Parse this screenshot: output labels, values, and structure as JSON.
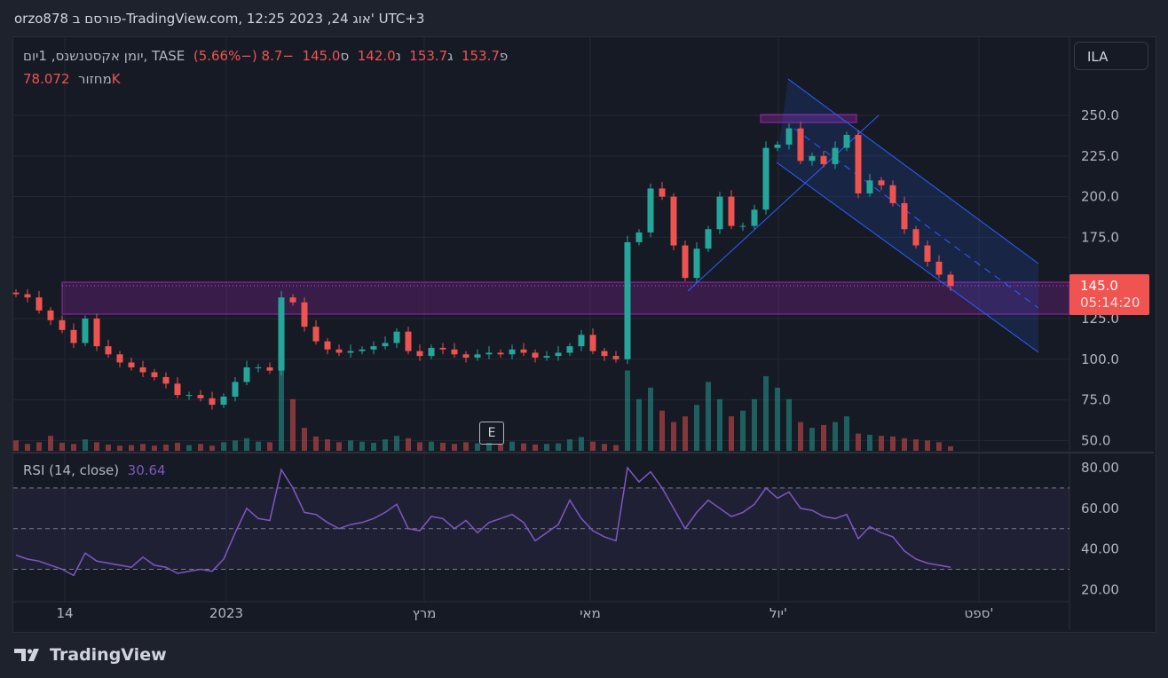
{
  "header": {
    "title": "orzo878 פורסם ב-TradingView.com, 12:25 2023 ,24 אוג' UTC+3"
  },
  "legend": {
    "symbol": "יומן אקסטנשנס, 1יום, TASE",
    "open_label": "פ",
    "open": "153.7",
    "high_label": "ג",
    "high": "153.7",
    "low_label": "נ",
    "low": "142.0",
    "close_label": "ס",
    "close": "145.0",
    "change": "−8.7 (−5.66%)",
    "volume_label": "מחזור",
    "volume": "78.072K"
  },
  "currency_button": "ILA",
  "price_tag": {
    "price": "145.0",
    "countdown": "05:14:20"
  },
  "earnings_badge": "E",
  "rsi_legend": {
    "label": "RSI (14, close)",
    "value": "30.64"
  },
  "footer": {
    "brand": "TradingView"
  },
  "colors": {
    "up": "#26a69a",
    "down": "#ef5350",
    "rsi": "#7e57c2",
    "zone": "#9c27b0",
    "channel": "#2962ff",
    "background": "#161a25"
  },
  "chart_data": [
    {
      "type": "candlestick",
      "title": "",
      "y_ticks": [
        "250.0",
        "225.0",
        "200.0",
        "175.0",
        "125.0",
        "100.0",
        "75.0",
        "50.0"
      ],
      "ylim": [
        45,
        275
      ],
      "x_ticks": [
        "14",
        "2023",
        "מרץ",
        "מאי",
        "יול'",
        "ספט'"
      ],
      "grid": true,
      "close": [
        140,
        138,
        130,
        124,
        118,
        110,
        125,
        108,
        103,
        98,
        95,
        92,
        89,
        85,
        78,
        78,
        76,
        72,
        77,
        86,
        95,
        95,
        93,
        138,
        135,
        120,
        111,
        106,
        104,
        105,
        106,
        108,
        110,
        117,
        105,
        102,
        107,
        106,
        103,
        101,
        103,
        104,
        103,
        106,
        104,
        101,
        102,
        104,
        108,
        115,
        105,
        102,
        100,
        172,
        178,
        205,
        200,
        170,
        150,
        168,
        180,
        200,
        182,
        182,
        192,
        230,
        232,
        242,
        222,
        225,
        220,
        230,
        238,
        202,
        210,
        207,
        196,
        180,
        170,
        160,
        152,
        145
      ],
      "volume_k": [
        180,
        120,
        150,
        260,
        140,
        120,
        200,
        150,
        110,
        90,
        100,
        120,
        90,
        110,
        140,
        100,
        120,
        90,
        150,
        180,
        220,
        160,
        150,
        1700,
        900,
        400,
        250,
        200,
        150,
        180,
        160,
        140,
        200,
        260,
        220,
        150,
        160,
        140,
        120,
        150,
        130,
        140,
        120,
        160,
        130,
        110,
        120,
        130,
        200,
        240,
        160,
        120,
        100,
        1400,
        900,
        1100,
        700,
        500,
        600,
        800,
        1200,
        900,
        600,
        700,
        900,
        1300,
        1100,
        900,
        500,
        400,
        450,
        500,
        600,
        300,
        280,
        260,
        250,
        220,
        200,
        180,
        150,
        78
      ]
    },
    {
      "type": "line",
      "title": "RSI (14, close)",
      "y_ticks": [
        "80.00",
        "60.00",
        "40.00",
        "20.00"
      ],
      "ylim": [
        16,
        86
      ],
      "bands": [
        70,
        50,
        30
      ],
      "values": [
        37,
        35,
        34,
        32,
        30,
        27,
        38,
        34,
        33,
        32,
        31,
        36,
        32,
        31,
        28,
        29,
        30,
        29,
        35,
        48,
        60,
        55,
        54,
        79,
        70,
        58,
        57,
        53,
        50,
        52,
        53,
        55,
        58,
        62,
        50,
        49,
        56,
        55,
        50,
        54,
        48,
        53,
        55,
        57,
        53,
        44,
        48,
        52,
        64,
        55,
        49,
        46,
        44,
        80,
        73,
        78,
        70,
        60,
        50,
        58,
        64,
        60,
        56,
        58,
        62,
        70,
        65,
        68,
        60,
        59,
        56,
        55,
        57,
        45,
        51,
        48,
        46,
        39,
        35,
        33,
        32,
        31
      ]
    }
  ]
}
